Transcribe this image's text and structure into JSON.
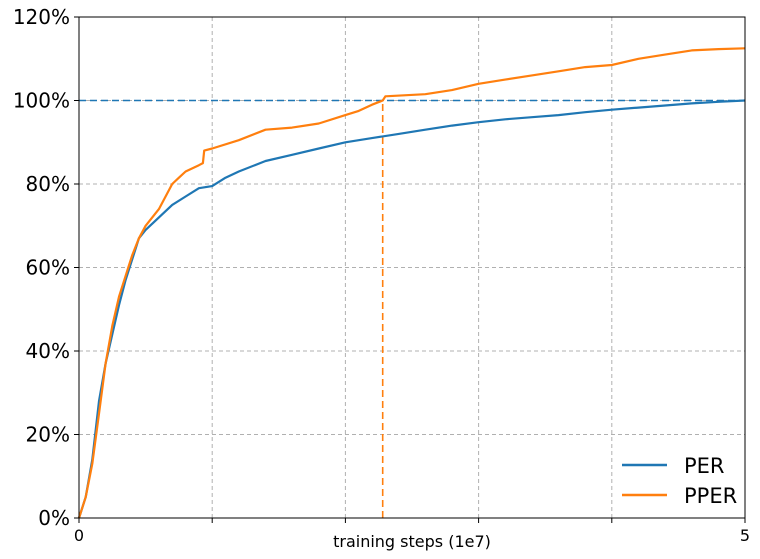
{
  "chart_data": {
    "type": "line",
    "title": "",
    "xlabel": "training steps (1e7)",
    "ylabel": "",
    "xlim": [
      0,
      5
    ],
    "ylim": [
      0,
      120
    ],
    "x_ticks": [
      0,
      1,
      2,
      3,
      4,
      5
    ],
    "x_tick_labels": [
      "0",
      "",
      "",
      "",
      "",
      "5"
    ],
    "y_ticks": [
      0,
      20,
      40,
      60,
      80,
      100,
      120
    ],
    "y_tick_labels": [
      "0%",
      "20%",
      "40%",
      "60%",
      "80%",
      "100%",
      "120%"
    ],
    "grid": true,
    "legend_position": "bottom-right",
    "reference_lines": [
      {
        "orientation": "horizontal",
        "value": 100,
        "color": "#1f77b4",
        "style": "dashed"
      },
      {
        "orientation": "vertical",
        "value": 2.28,
        "y_max": 100,
        "color": "#ff7f0e",
        "style": "dashed"
      }
    ],
    "series": [
      {
        "name": "PER",
        "color": "#1f77b4",
        "x": [
          0,
          0.05,
          0.1,
          0.15,
          0.2,
          0.25,
          0.3,
          0.35,
          0.4,
          0.45,
          0.5,
          0.6,
          0.7,
          0.8,
          0.9,
          1.0,
          1.1,
          1.2,
          1.4,
          1.6,
          1.8,
          2.0,
          2.2,
          2.4,
          2.6,
          2.8,
          3.0,
          3.2,
          3.4,
          3.6,
          3.8,
          4.0,
          4.2,
          4.4,
          4.6,
          4.8,
          5.0
        ],
        "y": [
          0,
          5,
          14,
          28,
          37,
          44,
          51,
          57,
          62,
          67,
          69,
          72,
          75,
          77,
          79,
          79.5,
          81.5,
          83,
          85.5,
          87,
          88.5,
          90,
          91,
          92,
          93,
          94,
          94.8,
          95.5,
          96,
          96.5,
          97.2,
          97.8,
          98.3,
          98.8,
          99.3,
          99.7,
          100
        ]
      },
      {
        "name": "PPER",
        "color": "#ff7f0e",
        "x": [
          0,
          0.05,
          0.1,
          0.15,
          0.2,
          0.25,
          0.3,
          0.35,
          0.4,
          0.45,
          0.5,
          0.6,
          0.7,
          0.75,
          0.8,
          0.9,
          0.93,
          0.94,
          1.0,
          1.2,
          1.4,
          1.6,
          1.8,
          2.0,
          2.1,
          2.2,
          2.28,
          2.3,
          2.6,
          2.8,
          3.0,
          3.2,
          3.4,
          3.6,
          3.8,
          4.0,
          4.2,
          4.4,
          4.6,
          4.8,
          5.0
        ],
        "y": [
          0,
          5,
          13,
          25,
          37,
          46,
          53,
          58,
          63,
          67,
          70,
          74,
          80,
          81.5,
          83,
          84.5,
          85,
          88,
          88.5,
          90.5,
          93,
          93.5,
          94.5,
          96.5,
          97.5,
          99,
          100,
          101,
          101.5,
          102.5,
          104,
          105,
          106,
          107,
          108,
          108.5,
          110,
          111,
          112,
          112.3,
          112.5
        ]
      }
    ]
  }
}
